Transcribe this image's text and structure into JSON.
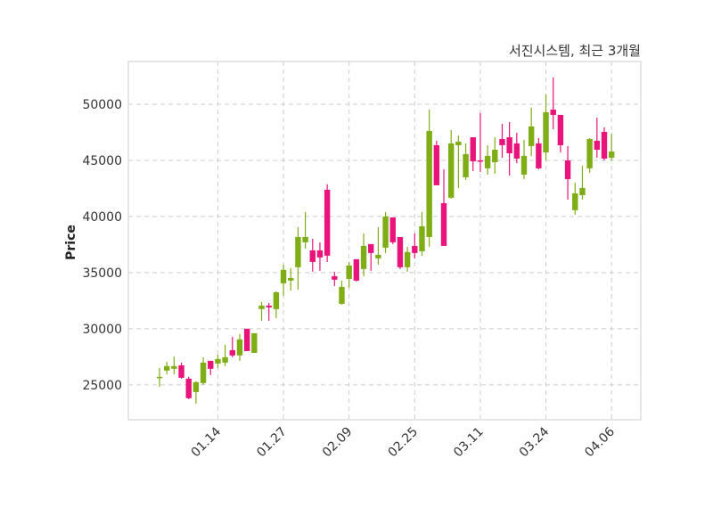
{
  "chart_data": {
    "type": "candlestick",
    "title": "서진시스템, 최근 3개월",
    "xlabel": "",
    "ylabel": "Price",
    "ylim": [
      21890,
      53810
    ],
    "yticks": [
      25000,
      30000,
      35000,
      40000,
      45000,
      50000
    ],
    "ytick_labels": [
      "25000",
      "30000",
      "35000",
      "40000",
      "45000",
      "50000"
    ],
    "xticks": [
      {
        "index": 8,
        "label": "01.14"
      },
      {
        "index": 17,
        "label": "01.27"
      },
      {
        "index": 26,
        "label": "02.09"
      },
      {
        "index": 35,
        "label": "02.25"
      },
      {
        "index": 44,
        "label": "03.11"
      },
      {
        "index": 53,
        "label": "03.24"
      },
      {
        "index": 62,
        "label": "04.06"
      }
    ],
    "grid": true,
    "colors": {
      "up": "#7fad16",
      "down": "#e8147c",
      "grid": "#cccccc",
      "frame": "#dddddd"
    },
    "candles_ohlc": [
      [
        25630,
        26510,
        24840,
        25710
      ],
      [
        26270,
        27060,
        25950,
        26670
      ],
      [
        26430,
        27540,
        25950,
        26670
      ],
      [
        26740,
        26980,
        25550,
        25630
      ],
      [
        25550,
        25710,
        23730,
        23810
      ],
      [
        24360,
        25320,
        23330,
        25240
      ],
      [
        25160,
        27460,
        25000,
        26980
      ],
      [
        27140,
        27140,
        25870,
        26430
      ],
      [
        26900,
        27700,
        26510,
        27300
      ],
      [
        26980,
        28570,
        26670,
        27460
      ],
      [
        28090,
        29280,
        27460,
        27620
      ],
      [
        27620,
        29520,
        27140,
        29050
      ],
      [
        30000,
        30000,
        28010,
        28010
      ],
      [
        27850,
        29600,
        27850,
        29600
      ],
      [
        31750,
        32380,
        30710,
        32060
      ],
      [
        32060,
        32300,
        30710,
        31900
      ],
      [
        31750,
        33330,
        30950,
        33250
      ],
      [
        34050,
        35710,
        32940,
        35240
      ],
      [
        34290,
        35400,
        33410,
        34520
      ],
      [
        35480,
        39050,
        33490,
        38170
      ],
      [
        37700,
        40400,
        37140,
        38170
      ],
      [
        36980,
        38010,
        35080,
        35950
      ],
      [
        36980,
        37700,
        35160,
        36350
      ],
      [
        42380,
        42860,
        35950,
        36510
      ],
      [
        34680,
        35080,
        33810,
        34370
      ],
      [
        32220,
        34290,
        32140,
        33730
      ],
      [
        34440,
        35950,
        33650,
        35630
      ],
      [
        36190,
        36190,
        34210,
        34290
      ],
      [
        35320,
        38490,
        34680,
        37380
      ],
      [
        37540,
        37540,
        35160,
        36750
      ],
      [
        36270,
        39050,
        35710,
        36590
      ],
      [
        37220,
        40400,
        36750,
        40000
      ],
      [
        39920,
        39920,
        37540,
        37700
      ],
      [
        38170,
        38170,
        35320,
        35480
      ],
      [
        35480,
        37300,
        35080,
        36830
      ],
      [
        37380,
        38490,
        36270,
        36750
      ],
      [
        36900,
        40400,
        36510,
        39130
      ],
      [
        38170,
        49520,
        37300,
        47620
      ],
      [
        46350,
        46750,
        42780,
        42780
      ],
      [
        41190,
        44210,
        37380,
        37380
      ],
      [
        41670,
        47700,
        41590,
        46510
      ],
      [
        46350,
        47220,
        42540,
        46670
      ],
      [
        43490,
        46510,
        43250,
        45560
      ],
      [
        47060,
        47060,
        44050,
        44920
      ],
      [
        45000,
        49210,
        43970,
        44920
      ],
      [
        44290,
        46350,
        43730,
        45400
      ],
      [
        44840,
        47060,
        43810,
        45950
      ],
      [
        46900,
        48250,
        45240,
        46350
      ],
      [
        47060,
        48410,
        43650,
        45630
      ],
      [
        46510,
        47460,
        44760,
        45160
      ],
      [
        43730,
        46830,
        43330,
        45400
      ],
      [
        46270,
        49680,
        45400,
        48020
      ],
      [
        46510,
        46980,
        44210,
        44290
      ],
      [
        45710,
        50870,
        45000,
        49290
      ],
      [
        49520,
        52380,
        47780,
        49050
      ],
      [
        49050,
        49050,
        45710,
        46350
      ],
      [
        45000,
        46270,
        41510,
        43330
      ],
      [
        40560,
        43020,
        40160,
        42060
      ],
      [
        41900,
        44520,
        41510,
        42540
      ],
      [
        44290,
        46980,
        43890,
        46900
      ],
      [
        46750,
        48810,
        45240,
        45950
      ],
      [
        47540,
        47940,
        45000,
        45160
      ],
      [
        45240,
        47380,
        45000,
        45790
      ]
    ]
  }
}
